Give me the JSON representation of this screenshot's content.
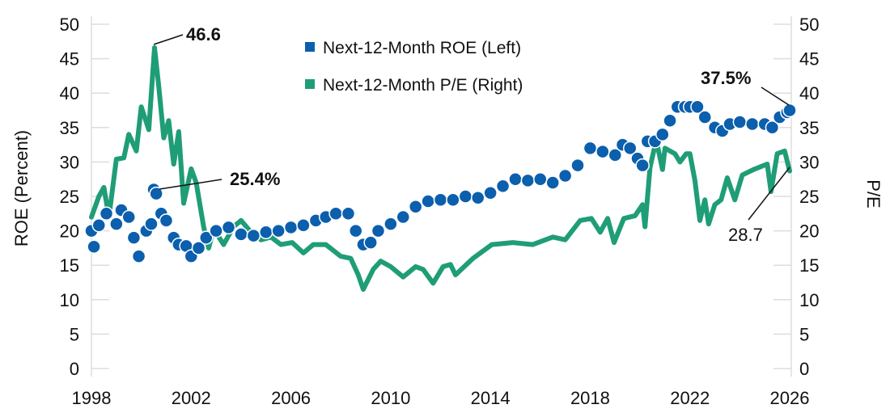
{
  "chart_data": {
    "type": "line+scatter",
    "title": "",
    "ylabel_left": "ROE (Percent)",
    "ylabel_right": "P/E",
    "xlim": [
      1998,
      2026
    ],
    "ylim_left": [
      0,
      50
    ],
    "ylim_right": [
      0,
      50
    ],
    "x_ticks": [
      "1998",
      "2002",
      "2006",
      "2010",
      "2014",
      "2018",
      "2022",
      "2026"
    ],
    "y_ticks_left": [
      "0",
      "5",
      "10",
      "15",
      "20",
      "25",
      "30",
      "35",
      "40",
      "45",
      "50"
    ],
    "y_ticks_right": [
      "0",
      "5",
      "10",
      "15",
      "20",
      "25",
      "30",
      "35",
      "40",
      "45",
      "50"
    ],
    "grid": false,
    "legend_position": "top-center",
    "colors": {
      "roe": "#0b5fad",
      "pe": "#1f9d77"
    },
    "series": [
      {
        "name": "Next-12-Month ROE (Left)",
        "type": "scatter",
        "axis": "left",
        "points": [
          [
            1998.0,
            20
          ],
          [
            1998.1,
            17.7
          ],
          [
            1998.3,
            20.8
          ],
          [
            1998.6,
            22.5
          ],
          [
            1999.0,
            21
          ],
          [
            1999.2,
            23
          ],
          [
            1999.5,
            22
          ],
          [
            1999.7,
            19
          ],
          [
            1999.9,
            16.3
          ],
          [
            2000.2,
            20
          ],
          [
            2000.4,
            21
          ],
          [
            2000.5,
            26
          ],
          [
            2000.6,
            25.4
          ],
          [
            2000.8,
            22.5
          ],
          [
            2001.0,
            21.5
          ],
          [
            2001.3,
            19
          ],
          [
            2001.5,
            18
          ],
          [
            2001.8,
            17.8
          ],
          [
            2002.0,
            16.3
          ],
          [
            2002.3,
            17.5
          ],
          [
            2002.6,
            19
          ],
          [
            2003.0,
            20
          ],
          [
            2003.5,
            20.5
          ],
          [
            2004.0,
            19.5
          ],
          [
            2004.5,
            19.3
          ],
          [
            2005.0,
            19.8
          ],
          [
            2005.5,
            20
          ],
          [
            2006.0,
            20.5
          ],
          [
            2006.5,
            20.8
          ],
          [
            2007.0,
            21.5
          ],
          [
            2007.4,
            22
          ],
          [
            2007.8,
            22.5
          ],
          [
            2008.3,
            22.5
          ],
          [
            2008.6,
            20
          ],
          [
            2008.9,
            18
          ],
          [
            2009.2,
            18.3
          ],
          [
            2009.5,
            20
          ],
          [
            2010.0,
            21
          ],
          [
            2010.5,
            22
          ],
          [
            2011.0,
            23.5
          ],
          [
            2011.5,
            24.3
          ],
          [
            2012.0,
            24.5
          ],
          [
            2012.5,
            24.5
          ],
          [
            2013.0,
            25
          ],
          [
            2013.5,
            24.8
          ],
          [
            2014.0,
            25.5
          ],
          [
            2014.5,
            26.5
          ],
          [
            2015.0,
            27.5
          ],
          [
            2015.5,
            27.3
          ],
          [
            2016.0,
            27.5
          ],
          [
            2016.5,
            27
          ],
          [
            2017.0,
            28
          ],
          [
            2017.5,
            29.5
          ],
          [
            2018.0,
            32
          ],
          [
            2018.5,
            31.5
          ],
          [
            2019.0,
            31
          ],
          [
            2019.3,
            32.5
          ],
          [
            2019.6,
            32
          ],
          [
            2019.9,
            30.5
          ],
          [
            2020.1,
            29.5
          ],
          [
            2020.3,
            33
          ],
          [
            2020.6,
            33
          ],
          [
            2020.9,
            34
          ],
          [
            2021.2,
            36
          ],
          [
            2021.5,
            38
          ],
          [
            2021.8,
            38
          ],
          [
            2022.0,
            38
          ],
          [
            2022.3,
            38
          ],
          [
            2022.6,
            36.5
          ],
          [
            2023.0,
            35
          ],
          [
            2023.3,
            34.5
          ],
          [
            2023.6,
            35.5
          ],
          [
            2024.0,
            35.8
          ],
          [
            2024.5,
            35.5
          ],
          [
            2025.0,
            35.5
          ],
          [
            2025.3,
            35
          ],
          [
            2025.6,
            36.5
          ],
          [
            2025.9,
            37.2
          ],
          [
            2026.0,
            37.5
          ]
        ]
      },
      {
        "name": "Next-12-Month P/E (Right)",
        "type": "line",
        "axis": "right",
        "points": [
          [
            1998.0,
            22
          ],
          [
            1998.3,
            25
          ],
          [
            1998.5,
            26.3
          ],
          [
            1998.7,
            22
          ],
          [
            1999.0,
            30.4
          ],
          [
            1999.3,
            30.6
          ],
          [
            1999.5,
            34
          ],
          [
            1999.8,
            31.6
          ],
          [
            2000.0,
            38
          ],
          [
            2000.3,
            34.7
          ],
          [
            2000.53,
            46.6
          ],
          [
            2000.7,
            41
          ],
          [
            2000.9,
            33.5
          ],
          [
            2001.1,
            36
          ],
          [
            2001.3,
            29.7
          ],
          [
            2001.5,
            34.4
          ],
          [
            2001.7,
            24
          ],
          [
            2002.0,
            29
          ],
          [
            2002.2,
            27
          ],
          [
            2002.5,
            20.6
          ],
          [
            2002.7,
            17.5
          ],
          [
            2002.9,
            20.3
          ],
          [
            2003.3,
            18
          ],
          [
            2003.7,
            20.6
          ],
          [
            2004.0,
            21.5
          ],
          [
            2004.4,
            19.8
          ],
          [
            2004.8,
            18.7
          ],
          [
            2005.2,
            19.1
          ],
          [
            2005.6,
            18
          ],
          [
            2006.05,
            18.3
          ],
          [
            2006.5,
            16.8
          ],
          [
            2006.9,
            18
          ],
          [
            2007.4,
            18
          ],
          [
            2008.0,
            16.3
          ],
          [
            2008.4,
            16
          ],
          [
            2008.7,
            13.6
          ],
          [
            2008.9,
            11.5
          ],
          [
            2009.3,
            14.4
          ],
          [
            2009.6,
            15.6
          ],
          [
            2010.0,
            14.8
          ],
          [
            2010.5,
            13.3
          ],
          [
            2011.0,
            14.8
          ],
          [
            2011.3,
            14.4
          ],
          [
            2011.7,
            12.4
          ],
          [
            2012.1,
            14.8
          ],
          [
            2012.4,
            15.1
          ],
          [
            2012.6,
            13.6
          ],
          [
            2013.3,
            16
          ],
          [
            2014.06,
            18
          ],
          [
            2014.9,
            18.3
          ],
          [
            2015.7,
            18
          ],
          [
            2016.5,
            19.1
          ],
          [
            2017.0,
            18.7
          ],
          [
            2017.6,
            21.5
          ],
          [
            2018.05,
            21.8
          ],
          [
            2018.4,
            19.8
          ],
          [
            2018.7,
            21.8
          ],
          [
            2018.96,
            18.3
          ],
          [
            2019.35,
            21.8
          ],
          [
            2019.8,
            22.2
          ],
          [
            2020.1,
            23.8
          ],
          [
            2020.2,
            20.6
          ],
          [
            2020.4,
            29.2
          ],
          [
            2020.65,
            33.2
          ],
          [
            2020.9,
            28.9
          ],
          [
            2021.0,
            32
          ],
          [
            2021.4,
            31.2
          ],
          [
            2021.6,
            30
          ],
          [
            2021.85,
            31.2
          ],
          [
            2022.0,
            31.2
          ],
          [
            2022.2,
            27.3
          ],
          [
            2022.4,
            21.5
          ],
          [
            2022.6,
            24.5
          ],
          [
            2022.75,
            21
          ],
          [
            2023.0,
            23.8
          ],
          [
            2023.25,
            24.5
          ],
          [
            2023.5,
            27.7
          ],
          [
            2023.8,
            24.5
          ],
          [
            2024.1,
            28.1
          ],
          [
            2024.55,
            28.9
          ],
          [
            2025.1,
            29.7
          ],
          [
            2025.25,
            25.7
          ],
          [
            2025.5,
            31.2
          ],
          [
            2025.8,
            31.6
          ],
          [
            2026.0,
            28.7
          ]
        ]
      }
    ],
    "annotations": [
      "46.6",
      "25.4%",
      "37.5%",
      "28.7"
    ]
  }
}
